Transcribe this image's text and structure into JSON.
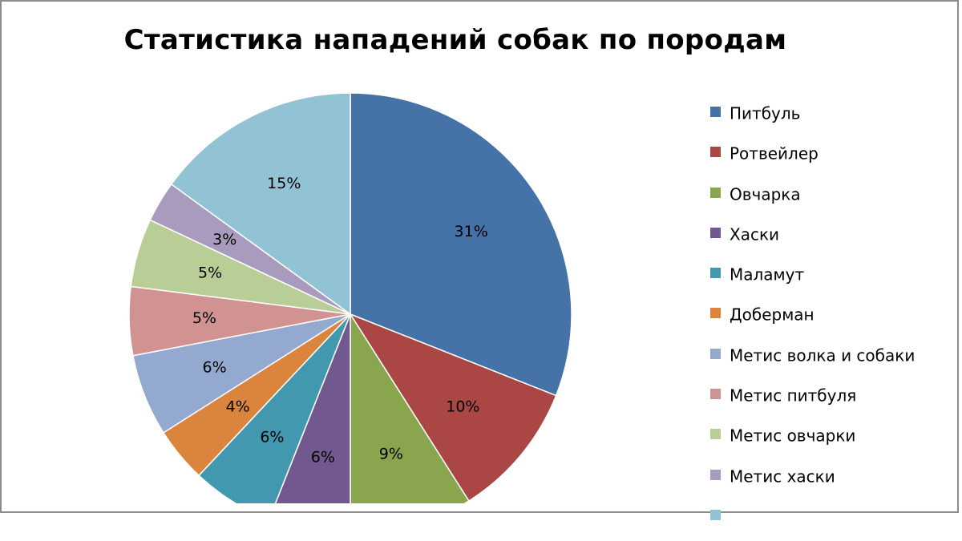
{
  "chart_data": {
    "type": "pie",
    "title": "Статистика нападений собак по породам",
    "legend_position": "right",
    "slices": [
      {
        "label": "Питбуль",
        "value": 31,
        "display": "31%",
        "color": "#4572A7"
      },
      {
        "label": "Ротвейлер",
        "value": 10,
        "display": "10%",
        "color": "#AA4643"
      },
      {
        "label": "Овчарка",
        "value": 9,
        "display": "9%",
        "color": "#89A54E"
      },
      {
        "label": "Хаски",
        "value": 6,
        "display": "6%",
        "color": "#71588F"
      },
      {
        "label": "Маламут",
        "value": 6,
        "display": "6%",
        "color": "#4198AF"
      },
      {
        "label": "Доберман",
        "value": 4,
        "display": "4%",
        "color": "#DB843D"
      },
      {
        "label": "Метис волка и собаки",
        "value": 6,
        "display": "6%",
        "color": "#93A9CF"
      },
      {
        "label": "Метис питбуля",
        "value": 5,
        "display": "5%",
        "color": "#D19392"
      },
      {
        "label": "Метис овчарки",
        "value": 5,
        "display": "5%",
        "color": "#B9CD96"
      },
      {
        "label": "Метис хаски",
        "value": 3,
        "display": "3%",
        "color": "#A99BBD"
      },
      {
        "label": "",
        "value": 15,
        "display": "15%",
        "color": "#92C3D5"
      }
    ]
  }
}
